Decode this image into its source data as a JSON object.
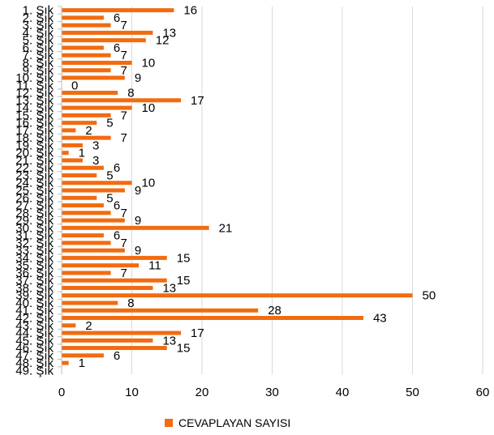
{
  "chart_data": {
    "type": "bar",
    "orientation": "horizontal",
    "categories": [
      "1. Şık",
      "2. Şık",
      "3. Şık",
      "4. Şık",
      "5. Şık",
      "6. Şık",
      "7. Şık",
      "8. Şık",
      "9. Şık",
      "10. Şık",
      "11. Şık",
      "12. Şık",
      "13. Şık",
      "14. Şık",
      "15. Şık",
      "16. Şık",
      "17. Şık",
      "18. Şık",
      "19. Şık",
      "20. Şık",
      "21. Şık",
      "22. Şık",
      "23. Şık",
      "24. Şık",
      "25. Şık",
      "26. Şık",
      "27. Şık",
      "28. Şık",
      "29. Şık",
      "30. Şık",
      "31. Şık",
      "32. Şık",
      "33. Şık",
      "34. Şık",
      "35. Şık",
      "36. Şık",
      "37. Şık",
      "38. Şık",
      "39. Şık",
      "40. Şık",
      "41. Şık",
      "42. Şık",
      "43. Şık",
      "44. Şık",
      "45. Şık",
      "46. Şık",
      "47. Şık",
      "48. Şık",
      "49. Şık"
    ],
    "series": [
      {
        "name": "CEVAPLAYAN SAYISI",
        "color": "#f26b10",
        "values": [
          16,
          6,
          7,
          13,
          12,
          6,
          7,
          10,
          7,
          9,
          0,
          8,
          17,
          10,
          7,
          5,
          2,
          7,
          3,
          1,
          3,
          6,
          5,
          10,
          9,
          5,
          6,
          7,
          9,
          21,
          6,
          7,
          9,
          15,
          11,
          7,
          15,
          13,
          50,
          8,
          28,
          43,
          2,
          17,
          13,
          15,
          6,
          1,
          null
        ]
      }
    ],
    "xlim": [
      0,
      60
    ],
    "xticks": [
      "0",
      "10",
      "20",
      "30",
      "40",
      "50",
      "60"
    ],
    "grid": true,
    "legend": "bottom",
    "title": "",
    "xlabel": "",
    "ylabel": ""
  }
}
